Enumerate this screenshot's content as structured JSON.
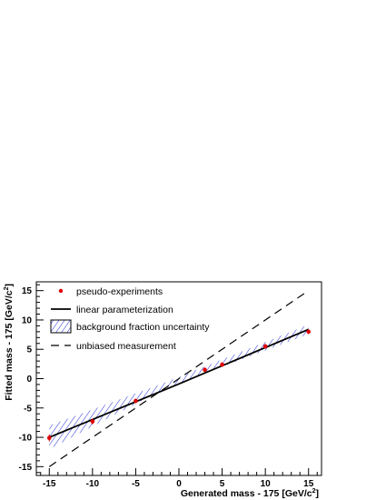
{
  "chart_data": {
    "type": "scatter",
    "xlabel": "Generated mass - 175 [GeV/c",
    "xlabel_sup": "2",
    "xlabel_end": "]",
    "ylabel": "Fitted mass - 175 [GeV/c",
    "ylabel_sup": "2",
    "ylabel_end": "]",
    "xlim": [
      -16.5,
      16.5
    ],
    "ylim": [
      -16.5,
      16.5
    ],
    "x_ticks": [
      -15,
      -10,
      -5,
      0,
      5,
      10,
      15
    ],
    "y_ticks": [
      -15,
      -10,
      -5,
      0,
      5,
      10,
      15
    ],
    "grid": false,
    "legend_position": "top-left",
    "series": [
      {
        "name": "pseudo-experiments",
        "style": "points-with-errors",
        "color": "#e00000",
        "x": [
          -15,
          -10,
          -5,
          3,
          5,
          10,
          15
        ],
        "y": [
          -10.1,
          -7.3,
          -3.8,
          1.5,
          2.4,
          5.5,
          8.0
        ],
        "yerr": [
          0.6,
          0.5,
          0.4,
          0.4,
          0.4,
          0.4,
          0.4
        ]
      },
      {
        "name": "linear parameterization",
        "style": "line",
        "color": "#000000",
        "x": [
          -15,
          0,
          15
        ],
        "y": [
          -10.0,
          -0.9,
          8.4
        ]
      },
      {
        "name": "background fraction uncertainty",
        "style": "band",
        "color": "#1f2bd6",
        "x": [
          -15,
          -1.5,
          15
        ],
        "y_low": [
          -12.0,
          -1.6,
          7.6
        ],
        "y_high": [
          -8.0,
          -0.6,
          9.2
        ]
      },
      {
        "name": "unbiased measurement",
        "style": "dashed-line",
        "color": "#000000",
        "x": [
          -15,
          15
        ],
        "y": [
          -15,
          15
        ]
      }
    ]
  }
}
